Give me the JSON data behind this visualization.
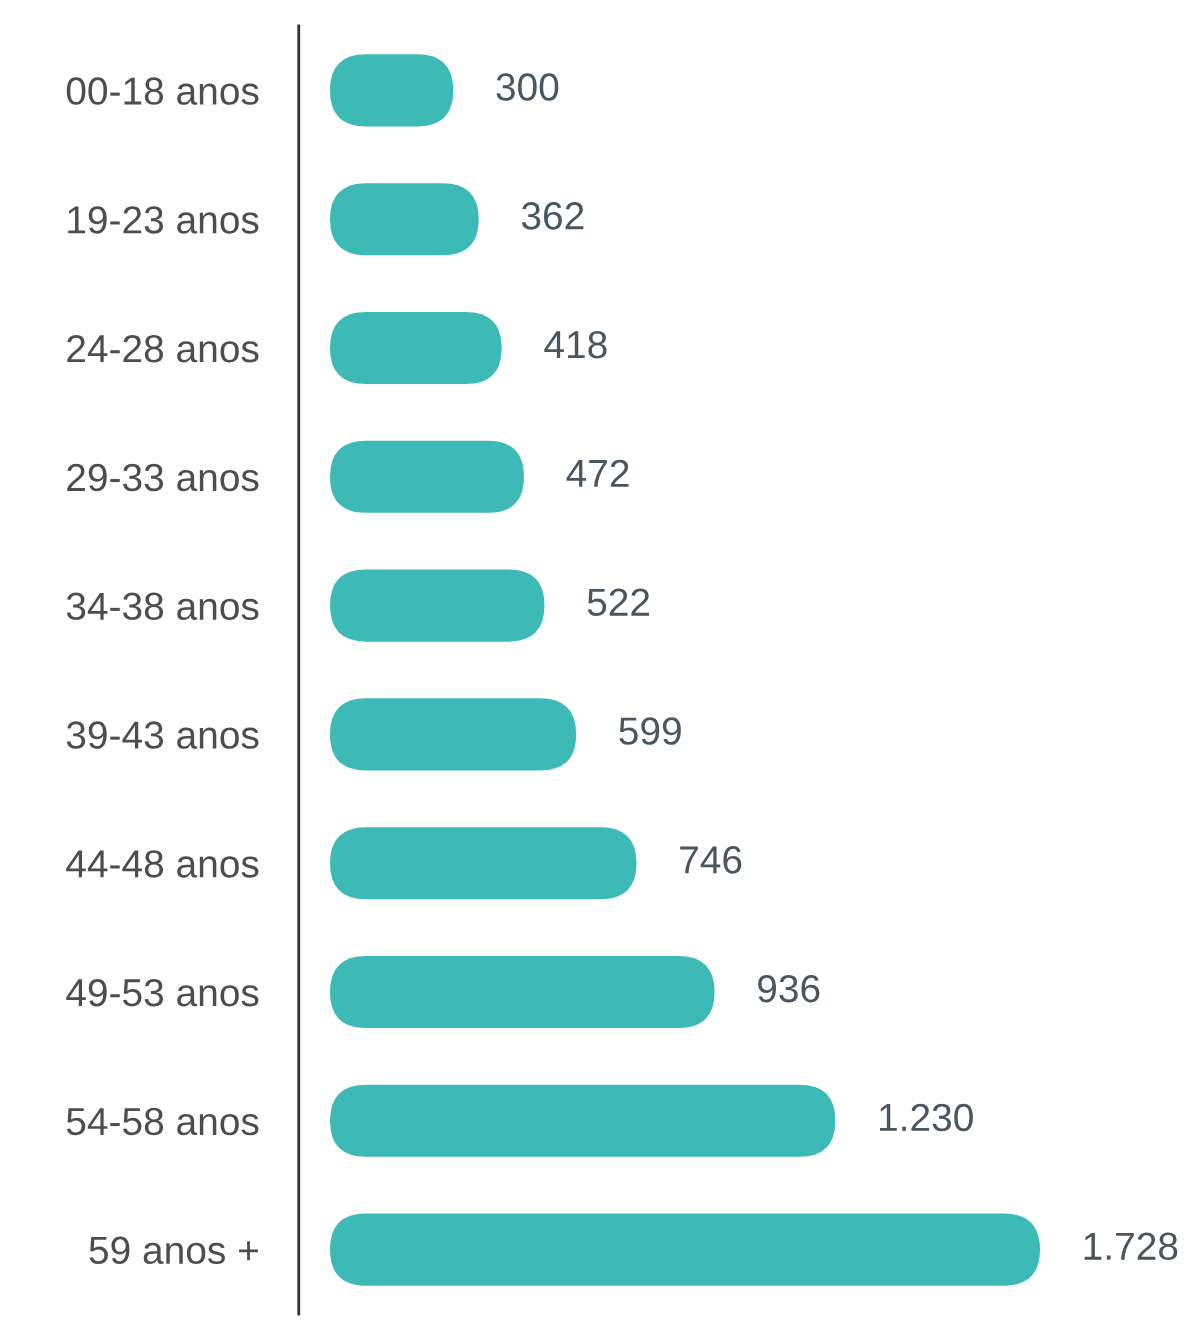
{
  "chart_data": {
    "type": "bar",
    "orientation": "horizontal",
    "categories": [
      "00-18 anos",
      "19-23 anos",
      "24-28 anos",
      "29-33 anos",
      "34-38 anos",
      "39-43 anos",
      "44-48 anos",
      "49-53 anos",
      "54-58 anos",
      "59 anos +"
    ],
    "values": [
      300,
      362,
      418,
      472,
      522,
      599,
      746,
      936,
      1230,
      1728
    ],
    "value_labels": [
      "300",
      "362",
      "418",
      "472",
      "522",
      "599",
      "746",
      "936",
      "1.230",
      "1.728"
    ],
    "color": "#3dbab5",
    "tick_labels": "y"
  }
}
